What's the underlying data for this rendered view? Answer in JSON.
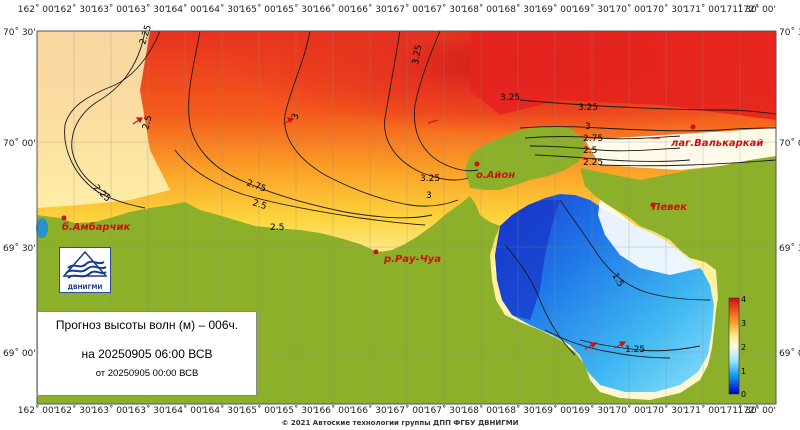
{
  "map": {
    "lon_labels": [
      "162˚ 00'",
      "162˚ 30'",
      "163˚ 00'",
      "163˚ 30'",
      "164˚ 00'",
      "164˚ 30'",
      "165˚ 00'",
      "165˚ 30'",
      "166˚ 00'",
      "166˚ 30'",
      "167˚ 00'",
      "167˚ 30'",
      "168˚ 00'",
      "168˚ 30'",
      "169˚ 00'",
      "169˚ 30'",
      "170˚ 00'",
      "170˚ 30'",
      "171˚ 00'",
      "171˚ 30'",
      "172˚ 00'"
    ],
    "lat_labels_left": [
      "70˚ 30'",
      "70˚ 00'",
      "69˚ 30'",
      "69˚ 00'"
    ],
    "lat_labels_right": [
      "70˚ 3",
      "70˚ 0",
      "69˚ 3",
      "69˚ 0"
    ],
    "places": {
      "ambarchik": "б.Амбарчик",
      "aion": "о.Айон",
      "valkarkai": "лаг.Валькаркай",
      "pevek": "Певек",
      "rau_chua": "р.Рау-Чуа"
    },
    "isolines": [
      "2.25",
      "2.5",
      "3",
      "3.25",
      "3.25",
      "3.25",
      "3",
      "2.75",
      "2.5",
      "2.25",
      "2.75",
      "2.5",
      "3.25",
      "3",
      "2.75",
      "2.25",
      "2.5",
      "1.5",
      "1.25"
    ],
    "colors": {
      "land": "#8cb02a",
      "scale_high": "#d7191c",
      "scale_low": "#0000d0",
      "labels": "#d01010"
    }
  },
  "colorbar": {
    "ticks": [
      "4",
      "3",
      "2",
      "1",
      "0"
    ]
  },
  "info": {
    "line1": "Прогноз высоты волн (м) – 006ч.",
    "line2": "на 20250905 06:00 ВСВ",
    "line3": "от 20250905 00:00 ВСВ"
  },
  "logo": {
    "caption": "ДВНИГМИ"
  },
  "footer": {
    "copyright": "© 2021 Автоские технологии группы ДПП ФГБУ ДВНИГМИ"
  }
}
